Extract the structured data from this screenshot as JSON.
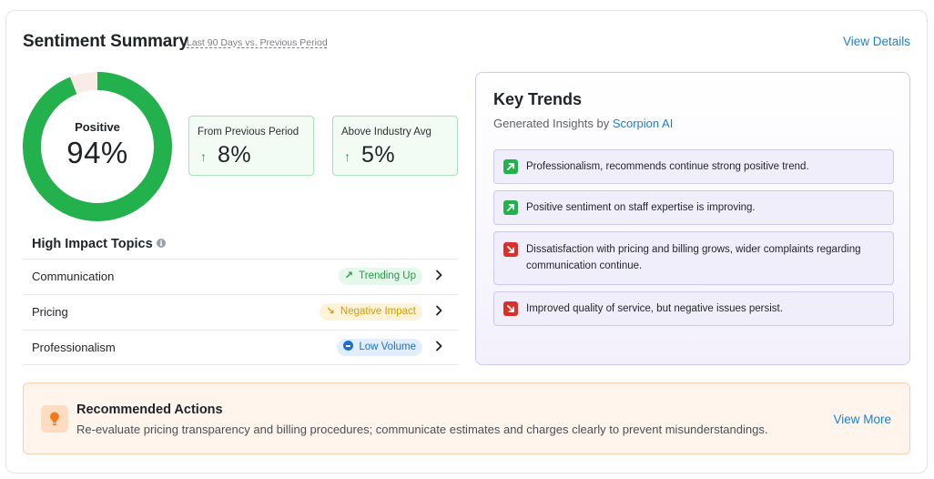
{
  "header": {
    "title": "Sentiment Summary",
    "subtitle": "Last 90 Days vs. Previous Period",
    "view_details": "View Details"
  },
  "sentiment": {
    "label": "Positive",
    "value_text": "94%",
    "positive_fraction": 0.94,
    "colors": {
      "positive": "#22b14c",
      "remainder": "#f9ece6"
    }
  },
  "stats": [
    {
      "label": "From Previous Period",
      "arrow": "↑",
      "value": "8%"
    },
    {
      "label": "Above Industry Avg",
      "arrow": "↑",
      "value": "5%"
    }
  ],
  "topics": {
    "title": "High Impact Topics",
    "info_icon": "i",
    "rows": [
      {
        "name": "Communication",
        "badge": "Trending Up",
        "badge_icon": "↗",
        "status": "trending-up"
      },
      {
        "name": "Pricing",
        "badge": "Negative Impact",
        "badge_icon": "↘",
        "status": "negative-impact"
      },
      {
        "name": "Professionalism",
        "badge": "Low Volume",
        "badge_icon": "minus-circle-icon",
        "status": "low-volume"
      }
    ]
  },
  "trends": {
    "title": "Key Trends",
    "subtitle_prefix": "Generated Insights by",
    "subtitle_brand": "Scorpion AI",
    "items": [
      {
        "direction": "positive",
        "text": "Professionalism, recommends continue strong positive trend."
      },
      {
        "direction": "positive",
        "text": "Positive sentiment on staff expertise is improving."
      },
      {
        "direction": "negative",
        "text": "Dissatisfaction with pricing and billing grows, wider complaints regarding communication continue."
      },
      {
        "direction": "negative",
        "text": "Improved quality of service, but negative issues persist."
      }
    ]
  },
  "recommended": {
    "title": "Recommended Actions",
    "text": "Re-evaluate pricing transparency and billing procedures; communicate estimates and charges clearly to prevent misunderstandings.",
    "view_more": "View More",
    "icon": "lightbulb-icon"
  }
}
